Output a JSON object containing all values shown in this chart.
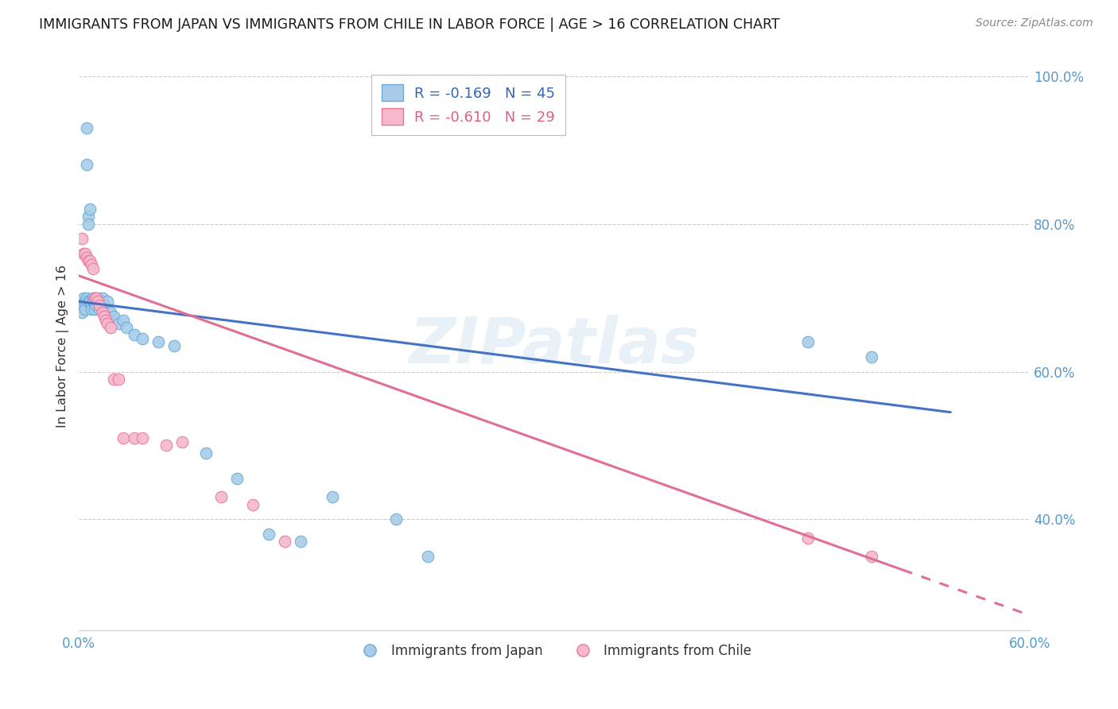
{
  "title": "IMMIGRANTS FROM JAPAN VS IMMIGRANTS FROM CHILE IN LABOR FORCE | AGE > 16 CORRELATION CHART",
  "source_text": "Source: ZipAtlas.com",
  "ylabel": "In Labor Force | Age > 16",
  "x_min": 0.0,
  "x_max": 0.6,
  "y_min": 0.25,
  "y_max": 1.02,
  "x_ticks": [
    0.0,
    0.1,
    0.2,
    0.3,
    0.4,
    0.5,
    0.6
  ],
  "x_tick_labels": [
    "0.0%",
    "",
    "",
    "",
    "",
    "",
    "60.0%"
  ],
  "y_ticks": [
    0.4,
    0.6,
    0.8,
    1.0
  ],
  "y_tick_labels": [
    "40.0%",
    "60.0%",
    "80.0%",
    "100.0%"
  ],
  "japan_color": "#a8cce8",
  "japan_edge_color": "#6aaad4",
  "chile_color": "#f5b8cc",
  "chile_edge_color": "#e8789a",
  "japan_R": -0.169,
  "japan_N": 45,
  "chile_R": -0.61,
  "chile_N": 29,
  "trend_japan_color": "#4472c4",
  "trend_chile_color": "#e07090",
  "watermark": "ZIPatlas",
  "japan_x": [
    0.002,
    0.003,
    0.003,
    0.004,
    0.004,
    0.004,
    0.005,
    0.005,
    0.005,
    0.006,
    0.006,
    0.006,
    0.007,
    0.007,
    0.008,
    0.008,
    0.009,
    0.009,
    0.01,
    0.01,
    0.011,
    0.012,
    0.013,
    0.014,
    0.015,
    0.016,
    0.018,
    0.02,
    0.022,
    0.025,
    0.028,
    0.03,
    0.035,
    0.04,
    0.05,
    0.06,
    0.08,
    0.1,
    0.12,
    0.14,
    0.16,
    0.2,
    0.22,
    0.46,
    0.5
  ],
  "japan_y": [
    0.68,
    0.7,
    0.69,
    0.695,
    0.69,
    0.685,
    0.93,
    0.88,
    0.7,
    0.81,
    0.8,
    0.695,
    0.82,
    0.695,
    0.69,
    0.685,
    0.7,
    0.695,
    0.69,
    0.685,
    0.69,
    0.7,
    0.685,
    0.695,
    0.7,
    0.69,
    0.695,
    0.68,
    0.675,
    0.665,
    0.67,
    0.66,
    0.65,
    0.645,
    0.64,
    0.635,
    0.49,
    0.455,
    0.38,
    0.37,
    0.43,
    0.4,
    0.35,
    0.64,
    0.62
  ],
  "chile_x": [
    0.002,
    0.003,
    0.004,
    0.005,
    0.006,
    0.007,
    0.008,
    0.009,
    0.01,
    0.011,
    0.012,
    0.013,
    0.015,
    0.016,
    0.017,
    0.018,
    0.02,
    0.022,
    0.025,
    0.028,
    0.035,
    0.04,
    0.055,
    0.065,
    0.09,
    0.11,
    0.13,
    0.46,
    0.5
  ],
  "chile_y": [
    0.78,
    0.76,
    0.76,
    0.755,
    0.75,
    0.75,
    0.745,
    0.74,
    0.7,
    0.7,
    0.695,
    0.69,
    0.68,
    0.675,
    0.67,
    0.665,
    0.66,
    0.59,
    0.59,
    0.51,
    0.51,
    0.51,
    0.5,
    0.505,
    0.43,
    0.42,
    0.37,
    0.375,
    0.35
  ],
  "japan_trend_x0": 0.0,
  "japan_trend_x1": 0.55,
  "japan_trend_y0": 0.695,
  "japan_trend_y1": 0.545,
  "chile_trend_x0": 0.0,
  "chile_trend_x1": 0.6,
  "chile_trend_y0": 0.73,
  "chile_trend_y1": 0.27
}
